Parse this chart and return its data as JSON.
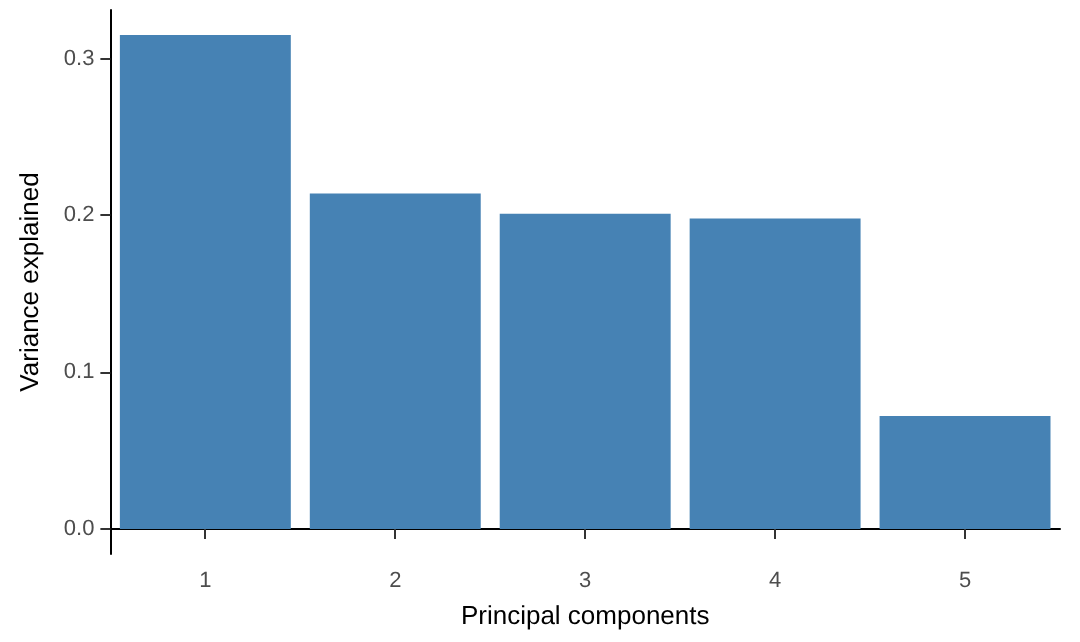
{
  "chart_data": {
    "type": "bar",
    "xlabel": "Principal components",
    "ylabel": "Variance explained",
    "categories": [
      "1",
      "2",
      "3",
      "4",
      "5"
    ],
    "values": [
      0.315,
      0.214,
      0.201,
      0.198,
      0.072
    ],
    "color": "#4682b4",
    "ylim": [
      -0.016,
      0.331
    ],
    "yticks": [
      {
        "value": 0,
        "label": "0.0"
      },
      {
        "value": 0.1,
        "label": "0.1"
      },
      {
        "value": 0.2,
        "label": "0.2"
      },
      {
        "value": 0.3,
        "label": "0.3"
      }
    ],
    "grid": false
  }
}
